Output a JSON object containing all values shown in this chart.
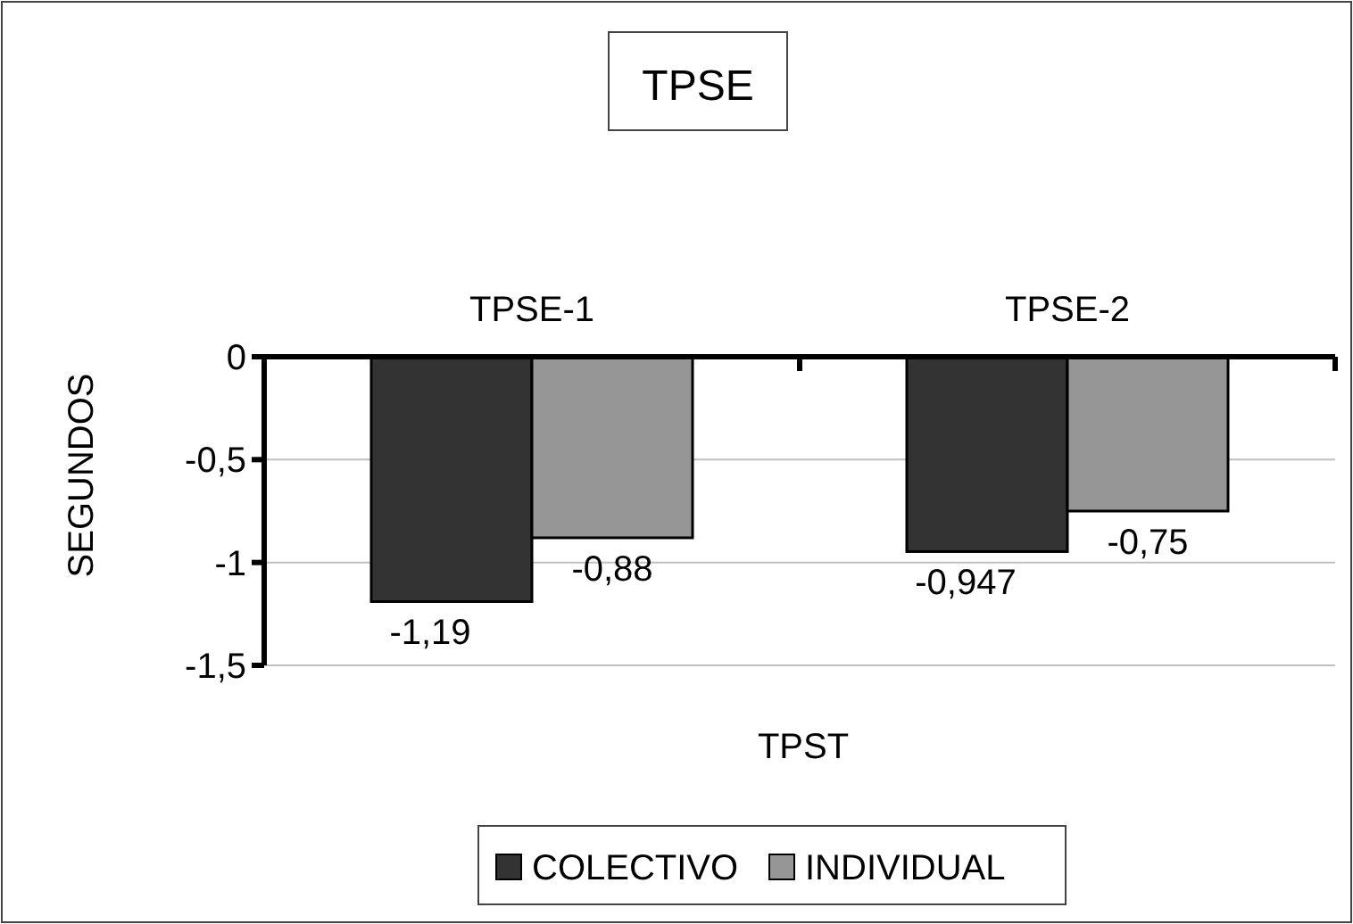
{
  "chart_data": {
    "type": "bar",
    "title": "TPSE",
    "xlabel": "TPST",
    "ylabel": "SEGUNDOS",
    "categories": [
      "TPSE-1",
      "TPSE-2"
    ],
    "series": [
      {
        "name": "COLECTIVO",
        "color": "#333333",
        "values": [
          -1.19,
          -0.947
        ],
        "value_labels": [
          "-1,19",
          "-0,947"
        ]
      },
      {
        "name": "INDIVIDUAL",
        "color": "#969696",
        "values": [
          -0.88,
          -0.75
        ],
        "value_labels": [
          "-0,88",
          "-0,75"
        ]
      }
    ],
    "ylim": [
      -1.5,
      0
    ],
    "yticks": [
      {
        "value": 0,
        "label": "0"
      },
      {
        "value": -0.5,
        "label": "-0,5"
      },
      {
        "value": -1,
        "label": "-1"
      },
      {
        "value": -1.5,
        "label": "-1,5"
      }
    ],
    "grid": "y",
    "legend": "bottom"
  }
}
